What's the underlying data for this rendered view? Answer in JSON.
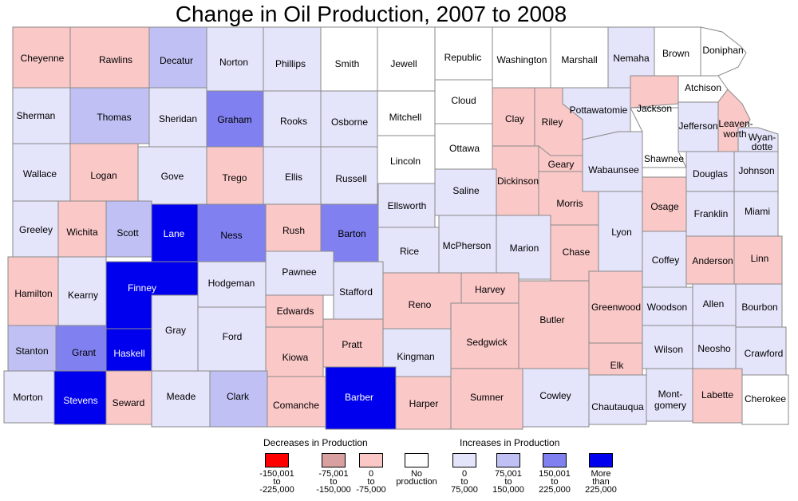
{
  "title": "Change in Oil Production, 2007 to 2008",
  "colors": {
    "dec_150_225": "#ff0000",
    "dec_75_150": "#d9a0a0",
    "dec_0_75": "#fbc8c8",
    "none": "#ffffff",
    "inc_0_75": "#e4e4fb",
    "inc_75_150": "#c0c0f4",
    "inc_150_225": "#8080f0",
    "inc_over_225": "#0000ee",
    "border": "#8a8a8a"
  },
  "legend": {
    "decreases_title": "Decreases in Production",
    "increases_title": "Increases in Production",
    "classes": [
      {
        "key": "dec_150_225",
        "lines": [
          "-150,001",
          "to",
          "-225,000"
        ]
      },
      {
        "key": "dec_75_150",
        "lines": [
          "-75,001",
          "to",
          "-150,000"
        ]
      },
      {
        "key": "dec_0_75",
        "lines": [
          "0",
          "to",
          "-75,000"
        ]
      },
      {
        "key": "none",
        "lines": [
          "No",
          "production"
        ]
      },
      {
        "key": "inc_0_75",
        "lines": [
          "0",
          "to",
          "75,000"
        ]
      },
      {
        "key": "inc_75_150",
        "lines": [
          "75,001",
          "to",
          "150,000"
        ]
      },
      {
        "key": "inc_150_225",
        "lines": [
          "150,001",
          "to",
          "225,000"
        ]
      },
      {
        "key": "inc_over_225",
        "lines": [
          "More",
          "than",
          "225,000"
        ]
      }
    ]
  },
  "counties": [
    {
      "name": "Cheyenne",
      "class": "dec_0_75"
    },
    {
      "name": "Rawlins",
      "class": "dec_0_75"
    },
    {
      "name": "Decatur",
      "class": "inc_75_150"
    },
    {
      "name": "Norton",
      "class": "inc_0_75"
    },
    {
      "name": "Phillips",
      "class": "inc_0_75"
    },
    {
      "name": "Smith",
      "class": "none"
    },
    {
      "name": "Jewell",
      "class": "none"
    },
    {
      "name": "Republic",
      "class": "none"
    },
    {
      "name": "Washington",
      "class": "none"
    },
    {
      "name": "Marshall",
      "class": "none"
    },
    {
      "name": "Nemaha",
      "class": "inc_0_75"
    },
    {
      "name": "Brown",
      "class": "none"
    },
    {
      "name": "Doniphan",
      "class": "none"
    },
    {
      "name": "Sherman",
      "class": "inc_0_75"
    },
    {
      "name": "Thomas",
      "class": "inc_75_150"
    },
    {
      "name": "Sheridan",
      "class": "inc_0_75"
    },
    {
      "name": "Graham",
      "class": "inc_150_225"
    },
    {
      "name": "Rooks",
      "class": "inc_0_75"
    },
    {
      "name": "Osborne",
      "class": "inc_0_75"
    },
    {
      "name": "Mitchell",
      "class": "none"
    },
    {
      "name": "Cloud",
      "class": "none"
    },
    {
      "name": "Clay",
      "class": "dec_0_75"
    },
    {
      "name": "Riley",
      "class": "dec_0_75"
    },
    {
      "name": "Pottawatomie",
      "class": "inc_0_75"
    },
    {
      "name": "Jackson",
      "class": "dec_0_75"
    },
    {
      "name": "Atchison",
      "class": "none"
    },
    {
      "name": "Jefferson",
      "class": "inc_0_75"
    },
    {
      "name": "Leaven-",
      "class": "dec_0_75"
    },
    {
      "name": "worth",
      "class": "dec_0_75"
    },
    {
      "name": "Wyan-",
      "class": "inc_0_75"
    },
    {
      "name": "dotte",
      "class": "inc_0_75"
    },
    {
      "name": "Wallace",
      "class": "inc_0_75"
    },
    {
      "name": "Logan",
      "class": "dec_0_75"
    },
    {
      "name": "Gove",
      "class": "inc_0_75"
    },
    {
      "name": "Trego",
      "class": "dec_0_75"
    },
    {
      "name": "Ellis",
      "class": "inc_0_75"
    },
    {
      "name": "Russell",
      "class": "inc_0_75"
    },
    {
      "name": "Lincoln",
      "class": "none"
    },
    {
      "name": "Ottawa",
      "class": "none"
    },
    {
      "name": "Dickinson",
      "class": "dec_0_75"
    },
    {
      "name": "Geary",
      "class": "dec_0_75"
    },
    {
      "name": "Wabaunsee",
      "class": "inc_0_75"
    },
    {
      "name": "Shawnee",
      "class": "none"
    },
    {
      "name": "Douglas",
      "class": "inc_0_75"
    },
    {
      "name": "Johnson",
      "class": "inc_0_75"
    },
    {
      "name": "Greeley",
      "class": "inc_0_75"
    },
    {
      "name": "Wichita",
      "class": "dec_0_75"
    },
    {
      "name": "Scott",
      "class": "inc_75_150"
    },
    {
      "name": "Lane",
      "class": "inc_over_225"
    },
    {
      "name": "Ness",
      "class": "inc_150_225"
    },
    {
      "name": "Rush",
      "class": "dec_0_75"
    },
    {
      "name": "Barton",
      "class": "inc_150_225"
    },
    {
      "name": "Ellsworth",
      "class": "inc_0_75"
    },
    {
      "name": "Saline",
      "class": "inc_0_75"
    },
    {
      "name": "Morris",
      "class": "dec_0_75"
    },
    {
      "name": "Osage",
      "class": "dec_0_75"
    },
    {
      "name": "Franklin",
      "class": "inc_0_75"
    },
    {
      "name": "Miami",
      "class": "inc_0_75"
    },
    {
      "name": "Rice",
      "class": "inc_0_75"
    },
    {
      "name": "McPherson",
      "class": "inc_0_75"
    },
    {
      "name": "Marion",
      "class": "inc_0_75"
    },
    {
      "name": "Chase",
      "class": "dec_0_75"
    },
    {
      "name": "Lyon",
      "class": "inc_0_75"
    },
    {
      "name": "Coffey",
      "class": "inc_0_75"
    },
    {
      "name": "Anderson",
      "class": "dec_0_75"
    },
    {
      "name": "Linn",
      "class": "dec_0_75"
    },
    {
      "name": "Hamilton",
      "class": "dec_0_75"
    },
    {
      "name": "Kearny",
      "class": "inc_0_75"
    },
    {
      "name": "Finney",
      "class": "inc_over_225"
    },
    {
      "name": "Hodgeman",
      "class": "inc_0_75"
    },
    {
      "name": "Pawnee",
      "class": "inc_0_75"
    },
    {
      "name": "Stafford",
      "class": "inc_0_75"
    },
    {
      "name": "Reno",
      "class": "dec_0_75"
    },
    {
      "name": "Harvey",
      "class": "dec_0_75"
    },
    {
      "name": "Butler",
      "class": "dec_0_75"
    },
    {
      "name": "Greenwood",
      "class": "dec_0_75"
    },
    {
      "name": "Woodson",
      "class": "inc_0_75"
    },
    {
      "name": "Allen",
      "class": "inc_0_75"
    },
    {
      "name": "Bourbon",
      "class": "inc_0_75"
    },
    {
      "name": "Gray",
      "class": "inc_0_75"
    },
    {
      "name": "Ford",
      "class": "inc_0_75"
    },
    {
      "name": "Edwards",
      "class": "dec_0_75"
    },
    {
      "name": "Kiowa",
      "class": "dec_0_75"
    },
    {
      "name": "Pratt",
      "class": "dec_0_75"
    },
    {
      "name": "Kingman",
      "class": "inc_0_75"
    },
    {
      "name": "Sedgwick",
      "class": "dec_0_75"
    },
    {
      "name": "Stanton",
      "class": "inc_75_150"
    },
    {
      "name": "Grant",
      "class": "inc_150_225"
    },
    {
      "name": "Haskell",
      "class": "inc_over_225"
    },
    {
      "name": "Wilson",
      "class": "inc_0_75"
    },
    {
      "name": "Neosho",
      "class": "inc_0_75"
    },
    {
      "name": "Crawford",
      "class": "inc_0_75"
    },
    {
      "name": "Elk",
      "class": "dec_0_75"
    },
    {
      "name": "Morton",
      "class": "inc_0_75"
    },
    {
      "name": "Stevens",
      "class": "inc_over_225"
    },
    {
      "name": "Seward",
      "class": "dec_0_75"
    },
    {
      "name": "Meade",
      "class": "inc_0_75"
    },
    {
      "name": "Clark",
      "class": "inc_75_150"
    },
    {
      "name": "Comanche",
      "class": "dec_0_75"
    },
    {
      "name": "Barber",
      "class": "inc_over_225"
    },
    {
      "name": "Harper",
      "class": "dec_0_75"
    },
    {
      "name": "Sumner",
      "class": "dec_0_75"
    },
    {
      "name": "Cowley",
      "class": "inc_0_75"
    },
    {
      "name": "Chautauqua",
      "class": "inc_0_75"
    },
    {
      "name": "Mont-",
      "class": "inc_0_75"
    },
    {
      "name": "gomery",
      "class": "inc_0_75"
    },
    {
      "name": "Labette",
      "class": "dec_0_75"
    },
    {
      "name": "Cherokee",
      "class": "none"
    }
  ]
}
